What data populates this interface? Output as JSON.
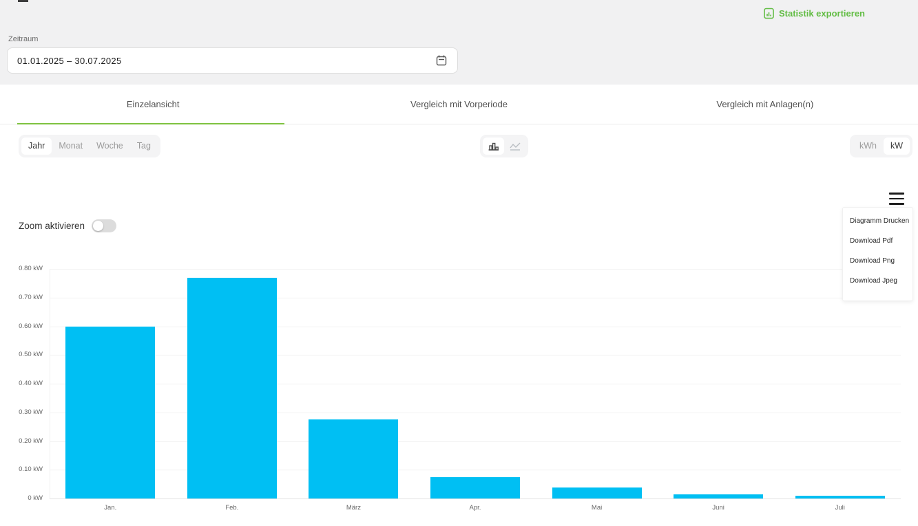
{
  "export_button": {
    "label": "Statistik exportieren"
  },
  "zeitraum": {
    "label": "Zeitraum",
    "value": "01.01.2025 – 30.07.2025"
  },
  "tabs": [
    {
      "label": "Einzelansicht",
      "active": true
    },
    {
      "label": "Vergleich mit Vorperiode",
      "active": false
    },
    {
      "label": "Vergleich mit Anlagen(n)",
      "active": false
    }
  ],
  "period_buttons": [
    {
      "label": "Jahr",
      "active": true
    },
    {
      "label": "Monat",
      "active": false
    },
    {
      "label": "Woche",
      "active": false
    },
    {
      "label": "Tag",
      "active": false
    }
  ],
  "unit_buttons": [
    {
      "label": "kWh",
      "active": false
    },
    {
      "label": "kW",
      "active": true
    }
  ],
  "menu": {
    "items": [
      "Diagramm Drucken",
      "Download Pdf",
      "Download Png",
      "Download Jpeg"
    ]
  },
  "zoom_toggle": {
    "label": "Zoom aktivieren",
    "state": "off"
  },
  "colors": {
    "accent_green": "#63bd45",
    "tab_underline_green": "#7fc241",
    "bar_cyan": "#00bff3",
    "page_background": "#f1f1f2"
  },
  "chart_data": {
    "type": "bar",
    "categories": [
      "Jan.",
      "Feb.",
      "März",
      "Apr.",
      "Mai",
      "Juni",
      "Juli"
    ],
    "values": [
      0.6,
      0.77,
      0.275,
      0.074,
      0.038,
      0.014,
      0.01
    ],
    "unit": "kW",
    "title": "",
    "xlabel": "",
    "ylabel": "",
    "ylim": [
      0,
      0.8
    ],
    "ytick_labels": [
      "0 kW",
      "0.10 kW",
      "0.20 kW",
      "0.30 kW",
      "0.40 kW",
      "0.50 kW",
      "0.60 kW",
      "0.70 kW",
      "0.80 kW"
    ],
    "grid": true,
    "legend": false
  }
}
